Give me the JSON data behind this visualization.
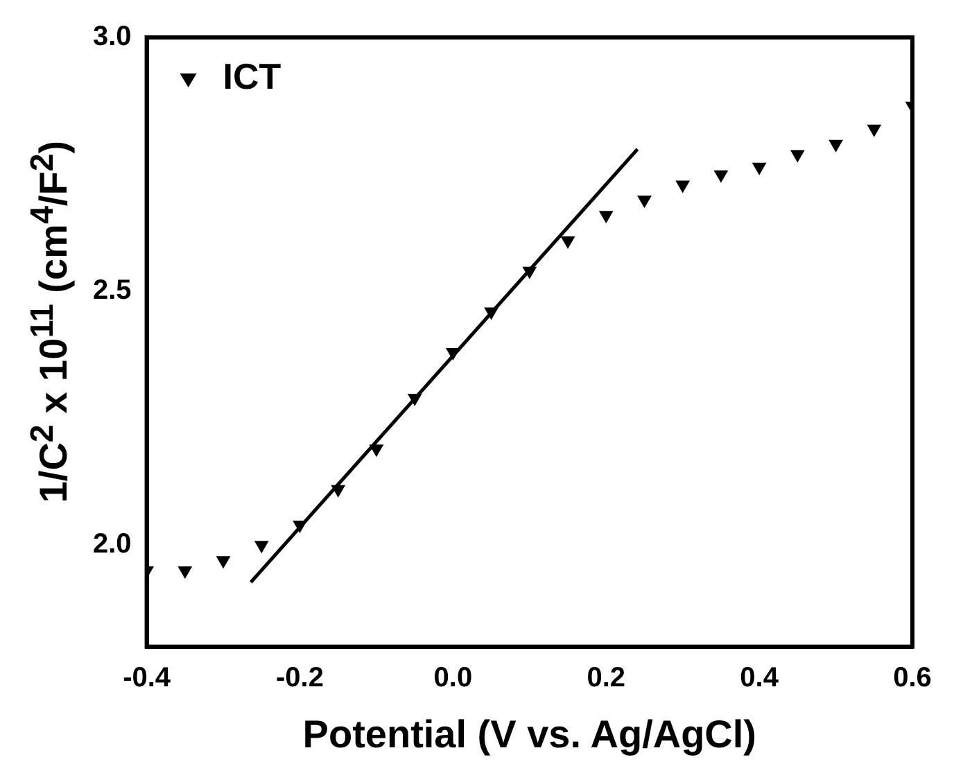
{
  "chart_data": {
    "type": "scatter",
    "xlabel": "Potential (V vs. Ag/AgCl)",
    "ylabel": "1/C$^{2}$ x 10$^{11}$ (cm$^{4}$/F$^{2}$)",
    "x": [
      -0.4,
      -0.35,
      -0.3,
      -0.25,
      -0.2,
      -0.15,
      -0.1,
      -0.05,
      0,
      0.05,
      0.1,
      0.15,
      0.2,
      0.25,
      0.3,
      0.35,
      0.4,
      0.45,
      0.5,
      0.55,
      0.6
    ],
    "series": [
      {
        "name": "ICT",
        "color": "#000000",
        "marker": "triangle",
        "values": [
          1.95,
          1.95,
          1.97,
          2.0,
          2.04,
          2.11,
          2.19,
          2.29,
          2.38,
          2.46,
          2.54,
          2.6,
          2.65,
          2.68,
          2.71,
          2.73,
          2.745,
          2.77,
          2.79,
          2.82,
          2.865
        ]
      },
      {
        "type": "line",
        "color": "#000000",
        "marker": "none",
        "x": [
          -0.264,
          0.241
        ],
        "values": [
          1.927,
          2.78
        ]
      }
    ],
    "xlim": [
      -0.4,
      0.6
    ],
    "xticks": [
      -0.4,
      -0.2,
      {
        "value": 0,
        "label": "0.0"
      },
      0.2,
      0.4,
      0.6
    ],
    "ylim": [
      1.8,
      3.0
    ],
    "yticks": [
      {
        "value": 2,
        "label": "2.0"
      },
      2.5,
      {
        "value": 3,
        "label": "3.0"
      }
    ],
    "legend": "top left",
    "grid": false
  }
}
